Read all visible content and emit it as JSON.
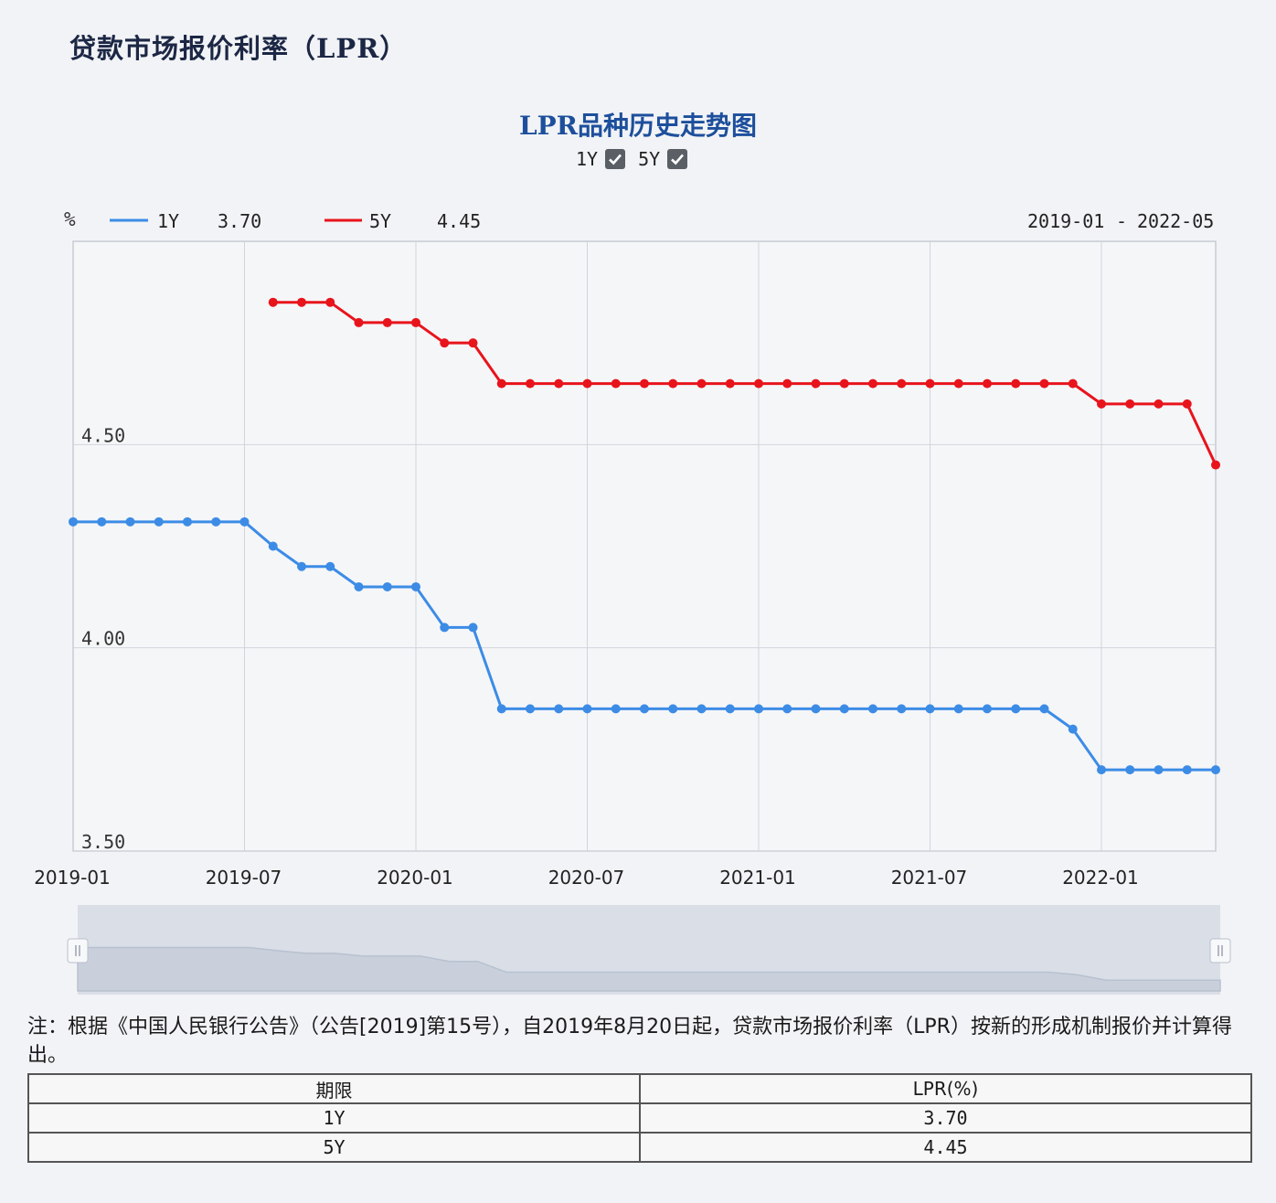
{
  "page": {
    "heading": "贷款市场报价利率（LPR）"
  },
  "toggles": [
    {
      "label": "1Y",
      "checked": true
    },
    {
      "label": "5Y",
      "checked": true
    }
  ],
  "legend": {
    "unit": "%",
    "items": [
      {
        "name": "1Y",
        "value": "3.70",
        "color": "#3c8ce6"
      },
      {
        "name": "5Y",
        "value": "4.45",
        "color": "#e8141c"
      }
    ],
    "range_start": "2019-01",
    "range_separator": "-",
    "range_end": "2022-05"
  },
  "chart_data": {
    "type": "line",
    "title": "LPR品种历史走势图",
    "xlabel": "",
    "ylabel": "%",
    "x_start": "2019-01",
    "x_end": "2022-05",
    "x_tick_labels": [
      "2019-01",
      "2019-07",
      "2020-01",
      "2020-07",
      "2021-01",
      "2021-07",
      "2022-01"
    ],
    "y_ticks": [
      "3.50",
      "4.00",
      "4.50"
    ],
    "ylim": [
      3.5,
      5.0
    ],
    "grid": true,
    "legend_position": "top-left",
    "series": [
      {
        "name": "1Y",
        "color": "#3c8ce6",
        "points": [
          [
            "2019-01",
            4.31
          ],
          [
            "2019-02",
            4.31
          ],
          [
            "2019-03",
            4.31
          ],
          [
            "2019-04",
            4.31
          ],
          [
            "2019-05",
            4.31
          ],
          [
            "2019-06",
            4.31
          ],
          [
            "2019-07",
            4.31
          ],
          [
            "2019-08",
            4.25
          ],
          [
            "2019-09",
            4.2
          ],
          [
            "2019-10",
            4.2
          ],
          [
            "2019-11",
            4.15
          ],
          [
            "2019-12",
            4.15
          ],
          [
            "2020-01",
            4.15
          ],
          [
            "2020-02",
            4.05
          ],
          [
            "2020-03",
            4.05
          ],
          [
            "2020-04",
            3.85
          ],
          [
            "2020-05",
            3.85
          ],
          [
            "2020-06",
            3.85
          ],
          [
            "2020-07",
            3.85
          ],
          [
            "2020-08",
            3.85
          ],
          [
            "2020-09",
            3.85
          ],
          [
            "2020-10",
            3.85
          ],
          [
            "2020-11",
            3.85
          ],
          [
            "2020-12",
            3.85
          ],
          [
            "2021-01",
            3.85
          ],
          [
            "2021-02",
            3.85
          ],
          [
            "2021-03",
            3.85
          ],
          [
            "2021-04",
            3.85
          ],
          [
            "2021-05",
            3.85
          ],
          [
            "2021-06",
            3.85
          ],
          [
            "2021-07",
            3.85
          ],
          [
            "2021-08",
            3.85
          ],
          [
            "2021-09",
            3.85
          ],
          [
            "2021-10",
            3.85
          ],
          [
            "2021-11",
            3.85
          ],
          [
            "2021-12",
            3.8
          ],
          [
            "2022-01",
            3.7
          ],
          [
            "2022-02",
            3.7
          ],
          [
            "2022-03",
            3.7
          ],
          [
            "2022-04",
            3.7
          ],
          [
            "2022-05",
            3.7
          ]
        ]
      },
      {
        "name": "5Y",
        "color": "#e8141c",
        "points": [
          [
            "2019-08",
            4.85
          ],
          [
            "2019-09",
            4.85
          ],
          [
            "2019-10",
            4.85
          ],
          [
            "2019-11",
            4.8
          ],
          [
            "2019-12",
            4.8
          ],
          [
            "2020-01",
            4.8
          ],
          [
            "2020-02",
            4.75
          ],
          [
            "2020-03",
            4.75
          ],
          [
            "2020-04",
            4.65
          ],
          [
            "2020-05",
            4.65
          ],
          [
            "2020-06",
            4.65
          ],
          [
            "2020-07",
            4.65
          ],
          [
            "2020-08",
            4.65
          ],
          [
            "2020-09",
            4.65
          ],
          [
            "2020-10",
            4.65
          ],
          [
            "2020-11",
            4.65
          ],
          [
            "2020-12",
            4.65
          ],
          [
            "2021-01",
            4.65
          ],
          [
            "2021-02",
            4.65
          ],
          [
            "2021-03",
            4.65
          ],
          [
            "2021-04",
            4.65
          ],
          [
            "2021-05",
            4.65
          ],
          [
            "2021-06",
            4.65
          ],
          [
            "2021-07",
            4.65
          ],
          [
            "2021-08",
            4.65
          ],
          [
            "2021-09",
            4.65
          ],
          [
            "2021-10",
            4.65
          ],
          [
            "2021-11",
            4.65
          ],
          [
            "2021-12",
            4.65
          ],
          [
            "2022-01",
            4.6
          ],
          [
            "2022-02",
            4.6
          ],
          [
            "2022-03",
            4.6
          ],
          [
            "2022-04",
            4.6
          ],
          [
            "2022-05",
            4.45
          ]
        ]
      }
    ],
    "zoom_range": [
      0,
      100
    ]
  },
  "note": "注：根据《中国人民银行公告》（公告[2019]第15号），自2019年8月20日起，贷款市场报价利率（LPR）按新的形成机制报价并计算得出。",
  "table": {
    "headers": [
      "期限",
      "LPR(%)"
    ],
    "rows": [
      [
        "1Y",
        "3.70"
      ],
      [
        "5Y",
        "4.45"
      ]
    ]
  }
}
